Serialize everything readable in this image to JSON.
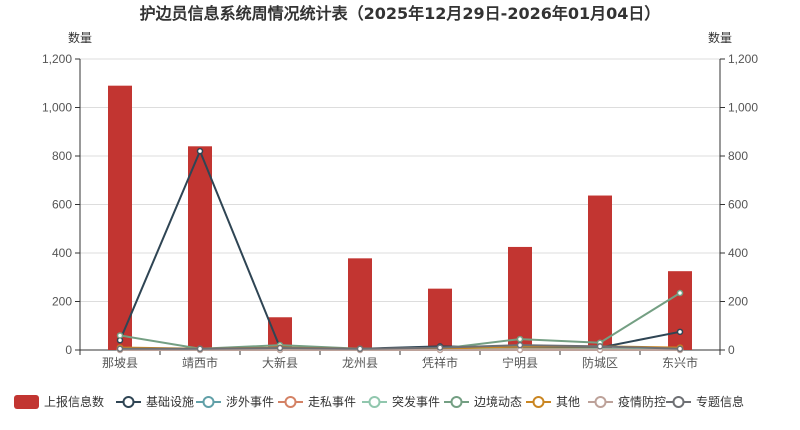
{
  "chart_data": {
    "type": "bar",
    "title": "护边员信息系统周情况统计表（2025年12月29日-2026年01月04日）",
    "ylabel_left": "数量",
    "ylabel_right": "数量",
    "ylim": [
      0,
      1200
    ],
    "yticks": [
      "0",
      "200",
      "400",
      "600",
      "800",
      "1,000",
      "1,200"
    ],
    "ytick_values": [
      0,
      200,
      400,
      600,
      800,
      1000,
      1200
    ],
    "grid": true,
    "legend_position": "bottom",
    "categories": [
      "那坡县",
      "靖西市",
      "大新县",
      "龙州县",
      "凭祥市",
      "宁明县",
      "防城区",
      "东兴市"
    ],
    "series": [
      {
        "name": "上报信息数",
        "type": "bar",
        "color": "#c23531",
        "values": [
          1090,
          840,
          135,
          378,
          253,
          425,
          637,
          325
        ]
      },
      {
        "name": "基础设施",
        "type": "line",
        "color": "#2f4554",
        "values": [
          40,
          820,
          10,
          5,
          15,
          10,
          10,
          75
        ]
      },
      {
        "name": "涉外事件",
        "type": "line",
        "color": "#61a0a8",
        "values": [
          5,
          5,
          5,
          3,
          3,
          5,
          5,
          5
        ]
      },
      {
        "name": "走私事件",
        "type": "line",
        "color": "#d48265",
        "values": [
          3,
          3,
          3,
          2,
          2,
          5,
          3,
          3
        ]
      },
      {
        "name": "突发事件",
        "type": "line",
        "color": "#91c7ae",
        "values": [
          2,
          2,
          2,
          2,
          2,
          2,
          2,
          2
        ]
      },
      {
        "name": "边境动态",
        "type": "line",
        "color": "#749f83",
        "values": [
          60,
          5,
          20,
          5,
          5,
          45,
          30,
          235
        ]
      },
      {
        "name": "其他",
        "type": "line",
        "color": "#ca8622",
        "values": [
          10,
          5,
          10,
          5,
          5,
          15,
          15,
          10
        ]
      },
      {
        "name": "疫情防控",
        "type": "line",
        "color": "#bda29a",
        "values": [
          0,
          0,
          0,
          0,
          0,
          0,
          0,
          0
        ]
      },
      {
        "name": "专题信息",
        "type": "line",
        "color": "#6e7074",
        "values": [
          5,
          5,
          8,
          5,
          10,
          20,
          15,
          5
        ]
      }
    ]
  },
  "legend_icons": {
    "上报信息数": "filled-rounded-rect",
    "other": "line-with-hollow-circle"
  }
}
